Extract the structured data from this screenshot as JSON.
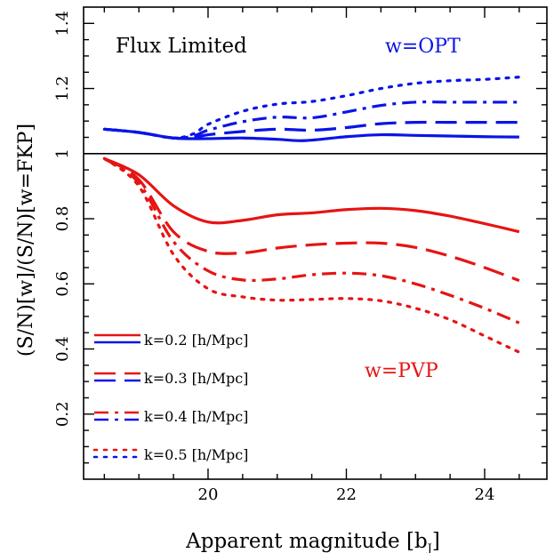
{
  "chart_data": {
    "type": "line",
    "title": "",
    "xlabel": "Apparent magnitude [b",
    "xlabel_sub": "J",
    "xlabel_close": "]",
    "ylabel": "(S/N)[w]/(S/N)[w=FKP]",
    "xlim": [
      18.2,
      24.9
    ],
    "ylim": [
      0.0,
      1.45
    ],
    "xticks": [
      20,
      22,
      24
    ],
    "xtick_labels": [
      "20",
      "22",
      "24"
    ],
    "yticks": [
      0.2,
      0.4,
      0.6,
      0.8,
      1.0,
      1.2,
      1.4
    ],
    "ytick_labels": [
      "0.2",
      "0.4",
      "0.6",
      "0.8",
      "1",
      "1.2",
      "1.4"
    ],
    "reference_line": 1.0,
    "colors": {
      "OPT": "#0a14e6",
      "PVP": "#e61414",
      "axis": "#000000"
    },
    "annotations": {
      "flux_limited": "Flux Limited",
      "opt_label": "w=OPT",
      "pvp_label": "w=PVP"
    },
    "legend": {
      "placement": "lower-left",
      "entries": [
        {
          "label": "k=0.2 [h/Mpc]",
          "style": "solid"
        },
        {
          "label": "k=0.3 [h/Mpc]",
          "style": "dashed"
        },
        {
          "label": "k=0.4 [h/Mpc]",
          "style": "dashdot"
        },
        {
          "label": "k=0.5 [h/Mpc]",
          "style": "dotted"
        }
      ]
    },
    "series": [
      {
        "group": "OPT",
        "k": 0.2,
        "style": "solid",
        "x": [
          18.5,
          19.0,
          19.5,
          20.0,
          20.5,
          21.0,
          21.4,
          22.0,
          22.5,
          23.0,
          23.5,
          24.0,
          24.5
        ],
        "y": [
          1.075,
          1.065,
          1.048,
          1.046,
          1.048,
          1.044,
          1.04,
          1.052,
          1.058,
          1.056,
          1.054,
          1.052,
          1.051
        ]
      },
      {
        "group": "OPT",
        "k": 0.3,
        "style": "dashed",
        "x": [
          18.5,
          19.0,
          19.5,
          19.8,
          20.0,
          20.5,
          21.0,
          21.5,
          22.0,
          22.5,
          23.0,
          23.5,
          24.0,
          24.5
        ],
        "y": [
          1.075,
          1.065,
          1.048,
          1.05,
          1.058,
          1.068,
          1.075,
          1.072,
          1.08,
          1.092,
          1.096,
          1.096,
          1.096,
          1.096
        ]
      },
      {
        "group": "OPT",
        "k": 0.4,
        "style": "dashdot",
        "x": [
          18.5,
          19.0,
          19.5,
          19.8,
          20.0,
          20.5,
          21.0,
          21.5,
          22.0,
          22.5,
          23.0,
          23.5,
          24.0,
          24.5
        ],
        "y": [
          1.075,
          1.065,
          1.048,
          1.055,
          1.072,
          1.098,
          1.112,
          1.11,
          1.128,
          1.148,
          1.158,
          1.158,
          1.158,
          1.158
        ]
      },
      {
        "group": "OPT",
        "k": 0.5,
        "style": "dotted",
        "x": [
          18.5,
          19.0,
          19.5,
          19.8,
          20.0,
          20.5,
          21.0,
          21.5,
          22.0,
          22.5,
          23.0,
          23.5,
          24.0,
          24.5
        ],
        "y": [
          1.075,
          1.065,
          1.048,
          1.062,
          1.09,
          1.13,
          1.152,
          1.16,
          1.178,
          1.2,
          1.216,
          1.224,
          1.228,
          1.235
        ]
      },
      {
        "group": "PVP",
        "k": 0.2,
        "style": "solid",
        "x": [
          18.5,
          19.0,
          19.5,
          20.0,
          20.5,
          21.0,
          21.5,
          22.0,
          22.5,
          23.0,
          23.5,
          24.0,
          24.5
        ],
        "y": [
          0.985,
          0.935,
          0.84,
          0.79,
          0.795,
          0.812,
          0.818,
          0.828,
          0.832,
          0.825,
          0.808,
          0.785,
          0.76
        ]
      },
      {
        "group": "PVP",
        "k": 0.3,
        "style": "dashed",
        "x": [
          18.5,
          19.0,
          19.5,
          20.0,
          20.5,
          21.0,
          21.5,
          22.0,
          22.5,
          23.0,
          23.5,
          24.0,
          24.5
        ],
        "y": [
          0.985,
          0.92,
          0.76,
          0.7,
          0.695,
          0.71,
          0.72,
          0.725,
          0.725,
          0.712,
          0.685,
          0.65,
          0.61
        ]
      },
      {
        "group": "PVP",
        "k": 0.4,
        "style": "dashdot",
        "x": [
          18.5,
          19.0,
          19.5,
          20.0,
          20.5,
          21.0,
          21.5,
          22.0,
          22.5,
          23.0,
          23.5,
          24.0,
          24.5
        ],
        "y": [
          0.985,
          0.91,
          0.73,
          0.64,
          0.612,
          0.615,
          0.628,
          0.633,
          0.625,
          0.6,
          0.565,
          0.525,
          0.48
        ]
      },
      {
        "group": "PVP",
        "k": 0.5,
        "style": "dotted",
        "x": [
          18.5,
          19.0,
          19.5,
          20.0,
          20.5,
          21.0,
          21.5,
          22.0,
          22.5,
          23.0,
          23.5,
          24.0,
          24.5
        ],
        "y": [
          0.985,
          0.9,
          0.69,
          0.585,
          0.56,
          0.55,
          0.552,
          0.555,
          0.548,
          0.525,
          0.49,
          0.44,
          0.39
        ]
      }
    ]
  }
}
